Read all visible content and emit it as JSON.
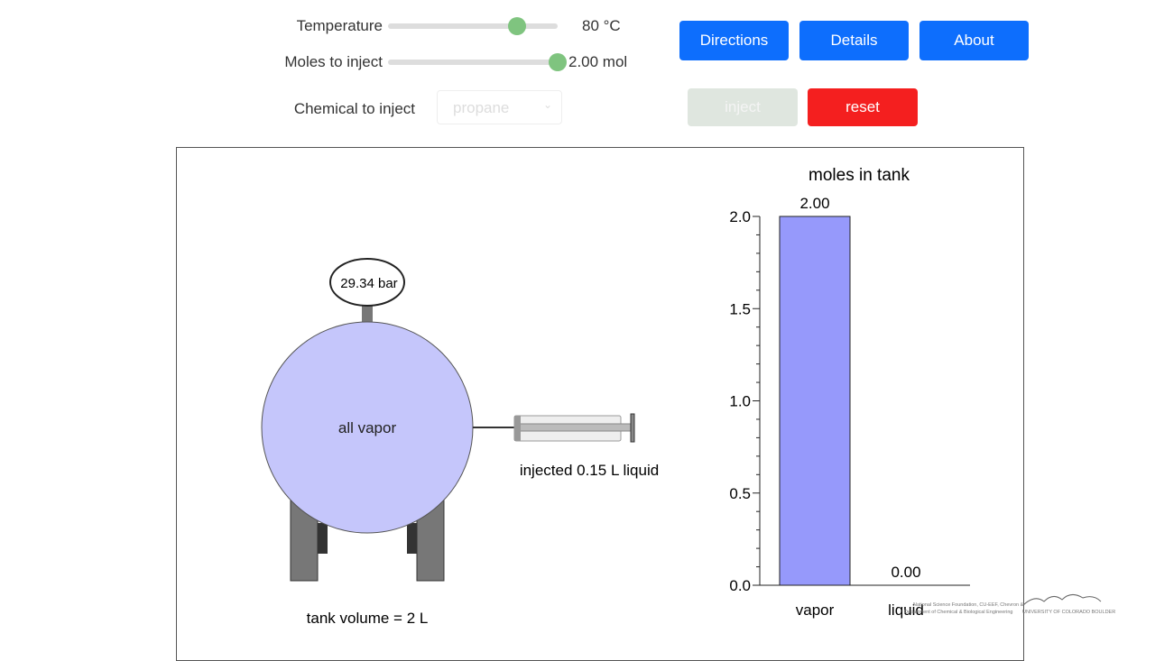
{
  "controls": {
    "temperature": {
      "label": "Temperature",
      "value": "80 °C",
      "fraction": 0.76
    },
    "moles": {
      "label": "Moles to inject",
      "value": "2.00 mol",
      "fraction": 1.0
    },
    "chemical": {
      "label": "Chemical to inject",
      "selected": "propane"
    }
  },
  "buttons": {
    "directions": "Directions",
    "details": "Details",
    "about": "About",
    "inject": "inject",
    "reset": "reset"
  },
  "tank": {
    "pressure": "29.34 bar",
    "state": "all vapor",
    "volume_label": "tank volume = 2 L",
    "syringe_label": "injected 0.15 L liquid"
  },
  "colors": {
    "vapor": "#c5c6fb",
    "bar": "#9699fb",
    "accent": "#0d6efd",
    "reset": "#f41f1f",
    "slider": "#7fc47f"
  },
  "chart_data": {
    "type": "bar",
    "title": "moles in tank",
    "categories": [
      "vapor",
      "liquid"
    ],
    "values": [
      2.0,
      0.0
    ],
    "data_labels": [
      "2.00",
      "0.00"
    ],
    "ylim": [
      0,
      2.0
    ],
    "yticks": [
      "0.0",
      "0.5",
      "1.0",
      "1.5",
      "2.0"
    ]
  },
  "credits": {
    "line1": "National Science Foundation, CU-EEF, Chevron &",
    "line2": "Department of Chemical & Biological Engineering",
    "university": "UNIVERSITY OF COLORADO BOULDER"
  }
}
